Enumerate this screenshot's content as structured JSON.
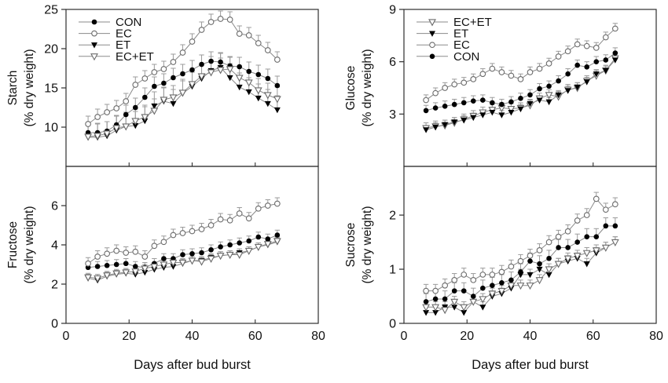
{
  "figure": {
    "xlabel": "Days after bud burst",
    "xlim": [
      0,
      80
    ],
    "xticks": [
      0,
      20,
      40,
      60,
      80
    ],
    "x_days": [
      7,
      10,
      13,
      16,
      19,
      22,
      25,
      28,
      31,
      34,
      37,
      40,
      43,
      46,
      49,
      52,
      55,
      58,
      61,
      64,
      67
    ],
    "colors": {
      "axis": "#2e2e2e",
      "line": "#8a8a8a",
      "error_bar": "#9b9b9b",
      "marker_fill": "#000000",
      "marker_open_stroke": "#6b6b6b",
      "text": "#111111"
    }
  },
  "chart_data": [
    {
      "id": "starch",
      "type": "line",
      "position": "top-left",
      "ylabel": [
        "Starch",
        "(% dry weight)"
      ],
      "ylim": [
        5,
        25
      ],
      "yticks": [
        10,
        15,
        20,
        25
      ],
      "show_legend": true,
      "show_xticklabels": false,
      "series": [
        {
          "name": "CON",
          "marker": "circle-filled",
          "err": 1.2,
          "values": [
            9.3,
            9.3,
            9.5,
            10.3,
            11.6,
            12.5,
            13.8,
            15.2,
            15.6,
            16.3,
            16.8,
            17.3,
            18.0,
            18.4,
            18.3,
            17.8,
            17.7,
            17.1,
            16.7,
            16.2,
            15.3
          ]
        },
        {
          "name": "EC",
          "marker": "circle-open",
          "err": 1.0,
          "values": [
            10.4,
            11.3,
            11.9,
            12.4,
            13.3,
            15.4,
            16.2,
            17.0,
            17.4,
            18.3,
            19.5,
            20.9,
            22.4,
            23.4,
            23.8,
            23.7,
            21.9,
            21.7,
            20.7,
            19.8,
            18.6
          ]
        },
        {
          "name": "ET",
          "marker": "triangle-filled",
          "err": 1.8,
          "values": [
            8.7,
            8.7,
            8.9,
            9.6,
            10.1,
            10.2,
            10.8,
            12.7,
            13.3,
            13.0,
            14.3,
            15.2,
            16.2,
            17.2,
            17.6,
            16.3,
            15.1,
            14.5,
            13.7,
            13.0,
            12.2
          ]
        },
        {
          "name": "EC+ET",
          "marker": "triangle-open",
          "err": 1.5,
          "values": [
            8.8,
            8.9,
            9.2,
            9.9,
            10.1,
            10.8,
            11.3,
            12.1,
            13.5,
            13.8,
            14.4,
            15.5,
            16.5,
            17.0,
            17.3,
            17.4,
            16.3,
            15.7,
            14.7,
            14.1,
            13.6
          ]
        }
      ]
    },
    {
      "id": "glucose",
      "type": "line",
      "position": "top-right",
      "ylabel": [
        "Glucose",
        "(% dry weight)"
      ],
      "ylim": [
        0,
        9
      ],
      "yticks": [
        3,
        6,
        9
      ],
      "show_legend": true,
      "show_xticklabels": false,
      "series": [
        {
          "name": "EC+ET",
          "marker": "triangle-open",
          "err": 0.3,
          "values": [
            2.2,
            2.3,
            2.35,
            2.5,
            2.7,
            2.9,
            3.1,
            3.25,
            3.35,
            3.3,
            3.35,
            3.5,
            3.9,
            4.1,
            4.0,
            4.4,
            4.5,
            4.9,
            5.2,
            5.5,
            6.2
          ]
        },
        {
          "name": "ET",
          "marker": "triangle-filled",
          "err": 0.25,
          "values": [
            2.1,
            2.25,
            2.4,
            2.55,
            2.65,
            2.8,
            2.95,
            3.1,
            2.95,
            3.1,
            3.3,
            3.6,
            3.8,
            3.7,
            4.1,
            4.35,
            4.55,
            4.85,
            5.3,
            5.5,
            6.1
          ]
        },
        {
          "name": "EC",
          "marker": "circle-open",
          "err": 0.3,
          "values": [
            3.8,
            4.2,
            4.5,
            4.7,
            4.8,
            5.0,
            5.3,
            5.6,
            5.4,
            5.2,
            5.0,
            5.4,
            5.6,
            5.9,
            6.3,
            6.6,
            7.0,
            6.9,
            6.8,
            7.4,
            7.9
          ]
        },
        {
          "name": "CON",
          "marker": "circle-filled",
          "err": 0.3,
          "values": [
            3.2,
            3.35,
            3.45,
            3.55,
            3.65,
            3.75,
            3.8,
            3.65,
            3.55,
            3.7,
            3.9,
            4.1,
            4.45,
            4.6,
            4.9,
            5.3,
            5.8,
            5.7,
            6.0,
            6.1,
            6.5
          ]
        }
      ]
    },
    {
      "id": "fructose",
      "type": "line",
      "position": "bottom-left",
      "ylabel": [
        "Fructose",
        "(% dry weight)"
      ],
      "ylim": [
        0,
        8
      ],
      "yticks": [
        0,
        2,
        4,
        6
      ],
      "show_legend": false,
      "show_xticklabels": true,
      "series": [
        {
          "name": "CON",
          "marker": "circle-filled",
          "err": 0.25,
          "values": [
            2.85,
            2.9,
            2.95,
            3.0,
            3.05,
            2.9,
            2.85,
            3.05,
            3.3,
            3.3,
            3.5,
            3.55,
            3.6,
            3.75,
            3.9,
            4.0,
            4.1,
            4.2,
            4.4,
            4.3,
            4.5
          ]
        },
        {
          "name": "EC",
          "marker": "circle-open",
          "err": 0.3,
          "values": [
            3.05,
            3.4,
            3.55,
            3.7,
            3.6,
            3.65,
            3.4,
            3.95,
            4.15,
            4.5,
            4.6,
            4.7,
            4.8,
            5.0,
            5.3,
            5.25,
            5.6,
            5.35,
            5.85,
            6.0,
            6.1
          ]
        },
        {
          "name": "ET",
          "marker": "triangle-filled",
          "err": 0.2,
          "values": [
            2.3,
            2.2,
            2.4,
            2.5,
            2.55,
            2.5,
            2.6,
            2.75,
            2.85,
            2.9,
            3.05,
            3.2,
            3.2,
            3.35,
            3.45,
            3.5,
            3.6,
            3.7,
            3.9,
            4.0,
            4.15
          ]
        },
        {
          "name": "EC+ET",
          "marker": "triangle-open",
          "err": 0.2,
          "values": [
            2.35,
            2.3,
            2.45,
            2.55,
            2.6,
            2.65,
            2.8,
            2.9,
            3.0,
            3.1,
            3.1,
            3.2,
            3.15,
            3.3,
            3.45,
            3.5,
            3.5,
            3.7,
            3.9,
            4.05,
            4.2
          ]
        }
      ]
    },
    {
      "id": "sucrose",
      "type": "line",
      "position": "bottom-right",
      "ylabel": [
        "Sucrose",
        "(% dry weight)"
      ],
      "ylim": [
        0,
        2.9
      ],
      "yticks": [
        0,
        1,
        2
      ],
      "show_legend": false,
      "show_xticklabels": true,
      "series": [
        {
          "name": "CON",
          "marker": "circle-filled",
          "err": 0.15,
          "values": [
            0.4,
            0.45,
            0.45,
            0.6,
            0.6,
            0.5,
            0.65,
            0.7,
            0.75,
            0.8,
            0.95,
            1.15,
            1.1,
            1.2,
            1.4,
            1.4,
            1.5,
            1.6,
            1.6,
            1.8,
            1.8
          ]
        },
        {
          "name": "EC",
          "marker": "circle-open",
          "err": 0.12,
          "values": [
            0.6,
            0.6,
            0.7,
            0.8,
            0.9,
            0.8,
            0.9,
            0.9,
            0.95,
            1.05,
            1.15,
            1.25,
            1.35,
            1.5,
            1.6,
            1.7,
            1.9,
            2.0,
            2.3,
            2.1,
            2.2
          ]
        },
        {
          "name": "ET",
          "marker": "triangle-filled",
          "err": 0.1,
          "values": [
            0.2,
            0.2,
            0.3,
            0.3,
            0.2,
            0.4,
            0.3,
            0.5,
            0.55,
            0.65,
            0.9,
            0.9,
            1.0,
            0.9,
            1.1,
            1.15,
            1.2,
            1.1,
            1.3,
            1.4,
            1.5
          ]
        },
        {
          "name": "EC+ET",
          "marker": "triangle-open",
          "err": 0.1,
          "values": [
            0.3,
            0.3,
            0.25,
            0.4,
            0.3,
            0.4,
            0.45,
            0.55,
            0.6,
            0.7,
            0.7,
            0.7,
            0.8,
            1.0,
            1.1,
            1.2,
            1.25,
            1.3,
            1.35,
            1.4,
            1.5
          ]
        }
      ]
    }
  ]
}
